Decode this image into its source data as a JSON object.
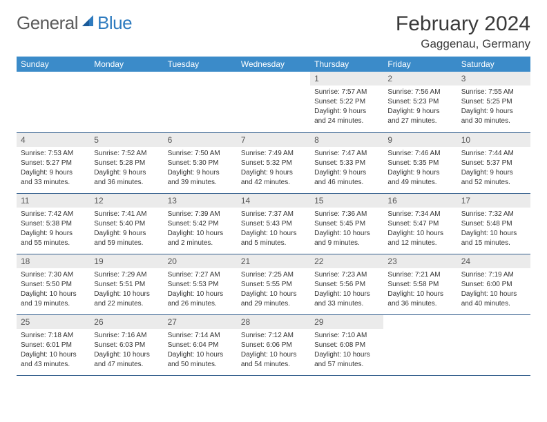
{
  "brand": {
    "part1": "General",
    "part2": "Blue"
  },
  "title": "February 2024",
  "location": "Gaggenau, Germany",
  "colors": {
    "header_bg": "#3b8bc9",
    "header_fg": "#ffffff",
    "daynum_bg": "#ebebeb",
    "row_border": "#2e5a8a",
    "brand_gray": "#5a5a5a",
    "brand_blue": "#2e7bbf"
  },
  "day_headers": [
    "Sunday",
    "Monday",
    "Tuesday",
    "Wednesday",
    "Thursday",
    "Friday",
    "Saturday"
  ],
  "weeks": [
    [
      {
        "n": "",
        "lines": []
      },
      {
        "n": "",
        "lines": []
      },
      {
        "n": "",
        "lines": []
      },
      {
        "n": "",
        "lines": []
      },
      {
        "n": "1",
        "lines": [
          "Sunrise: 7:57 AM",
          "Sunset: 5:22 PM",
          "Daylight: 9 hours",
          "and 24 minutes."
        ]
      },
      {
        "n": "2",
        "lines": [
          "Sunrise: 7:56 AM",
          "Sunset: 5:23 PM",
          "Daylight: 9 hours",
          "and 27 minutes."
        ]
      },
      {
        "n": "3",
        "lines": [
          "Sunrise: 7:55 AM",
          "Sunset: 5:25 PM",
          "Daylight: 9 hours",
          "and 30 minutes."
        ]
      }
    ],
    [
      {
        "n": "4",
        "lines": [
          "Sunrise: 7:53 AM",
          "Sunset: 5:27 PM",
          "Daylight: 9 hours",
          "and 33 minutes."
        ]
      },
      {
        "n": "5",
        "lines": [
          "Sunrise: 7:52 AM",
          "Sunset: 5:28 PM",
          "Daylight: 9 hours",
          "and 36 minutes."
        ]
      },
      {
        "n": "6",
        "lines": [
          "Sunrise: 7:50 AM",
          "Sunset: 5:30 PM",
          "Daylight: 9 hours",
          "and 39 minutes."
        ]
      },
      {
        "n": "7",
        "lines": [
          "Sunrise: 7:49 AM",
          "Sunset: 5:32 PM",
          "Daylight: 9 hours",
          "and 42 minutes."
        ]
      },
      {
        "n": "8",
        "lines": [
          "Sunrise: 7:47 AM",
          "Sunset: 5:33 PM",
          "Daylight: 9 hours",
          "and 46 minutes."
        ]
      },
      {
        "n": "9",
        "lines": [
          "Sunrise: 7:46 AM",
          "Sunset: 5:35 PM",
          "Daylight: 9 hours",
          "and 49 minutes."
        ]
      },
      {
        "n": "10",
        "lines": [
          "Sunrise: 7:44 AM",
          "Sunset: 5:37 PM",
          "Daylight: 9 hours",
          "and 52 minutes."
        ]
      }
    ],
    [
      {
        "n": "11",
        "lines": [
          "Sunrise: 7:42 AM",
          "Sunset: 5:38 PM",
          "Daylight: 9 hours",
          "and 55 minutes."
        ]
      },
      {
        "n": "12",
        "lines": [
          "Sunrise: 7:41 AM",
          "Sunset: 5:40 PM",
          "Daylight: 9 hours",
          "and 59 minutes."
        ]
      },
      {
        "n": "13",
        "lines": [
          "Sunrise: 7:39 AM",
          "Sunset: 5:42 PM",
          "Daylight: 10 hours",
          "and 2 minutes."
        ]
      },
      {
        "n": "14",
        "lines": [
          "Sunrise: 7:37 AM",
          "Sunset: 5:43 PM",
          "Daylight: 10 hours",
          "and 5 minutes."
        ]
      },
      {
        "n": "15",
        "lines": [
          "Sunrise: 7:36 AM",
          "Sunset: 5:45 PM",
          "Daylight: 10 hours",
          "and 9 minutes."
        ]
      },
      {
        "n": "16",
        "lines": [
          "Sunrise: 7:34 AM",
          "Sunset: 5:47 PM",
          "Daylight: 10 hours",
          "and 12 minutes."
        ]
      },
      {
        "n": "17",
        "lines": [
          "Sunrise: 7:32 AM",
          "Sunset: 5:48 PM",
          "Daylight: 10 hours",
          "and 15 minutes."
        ]
      }
    ],
    [
      {
        "n": "18",
        "lines": [
          "Sunrise: 7:30 AM",
          "Sunset: 5:50 PM",
          "Daylight: 10 hours",
          "and 19 minutes."
        ]
      },
      {
        "n": "19",
        "lines": [
          "Sunrise: 7:29 AM",
          "Sunset: 5:51 PM",
          "Daylight: 10 hours",
          "and 22 minutes."
        ]
      },
      {
        "n": "20",
        "lines": [
          "Sunrise: 7:27 AM",
          "Sunset: 5:53 PM",
          "Daylight: 10 hours",
          "and 26 minutes."
        ]
      },
      {
        "n": "21",
        "lines": [
          "Sunrise: 7:25 AM",
          "Sunset: 5:55 PM",
          "Daylight: 10 hours",
          "and 29 minutes."
        ]
      },
      {
        "n": "22",
        "lines": [
          "Sunrise: 7:23 AM",
          "Sunset: 5:56 PM",
          "Daylight: 10 hours",
          "and 33 minutes."
        ]
      },
      {
        "n": "23",
        "lines": [
          "Sunrise: 7:21 AM",
          "Sunset: 5:58 PM",
          "Daylight: 10 hours",
          "and 36 minutes."
        ]
      },
      {
        "n": "24",
        "lines": [
          "Sunrise: 7:19 AM",
          "Sunset: 6:00 PM",
          "Daylight: 10 hours",
          "and 40 minutes."
        ]
      }
    ],
    [
      {
        "n": "25",
        "lines": [
          "Sunrise: 7:18 AM",
          "Sunset: 6:01 PM",
          "Daylight: 10 hours",
          "and 43 minutes."
        ]
      },
      {
        "n": "26",
        "lines": [
          "Sunrise: 7:16 AM",
          "Sunset: 6:03 PM",
          "Daylight: 10 hours",
          "and 47 minutes."
        ]
      },
      {
        "n": "27",
        "lines": [
          "Sunrise: 7:14 AM",
          "Sunset: 6:04 PM",
          "Daylight: 10 hours",
          "and 50 minutes."
        ]
      },
      {
        "n": "28",
        "lines": [
          "Sunrise: 7:12 AM",
          "Sunset: 6:06 PM",
          "Daylight: 10 hours",
          "and 54 minutes."
        ]
      },
      {
        "n": "29",
        "lines": [
          "Sunrise: 7:10 AM",
          "Sunset: 6:08 PM",
          "Daylight: 10 hours",
          "and 57 minutes."
        ]
      },
      {
        "n": "",
        "lines": []
      },
      {
        "n": "",
        "lines": []
      }
    ]
  ]
}
